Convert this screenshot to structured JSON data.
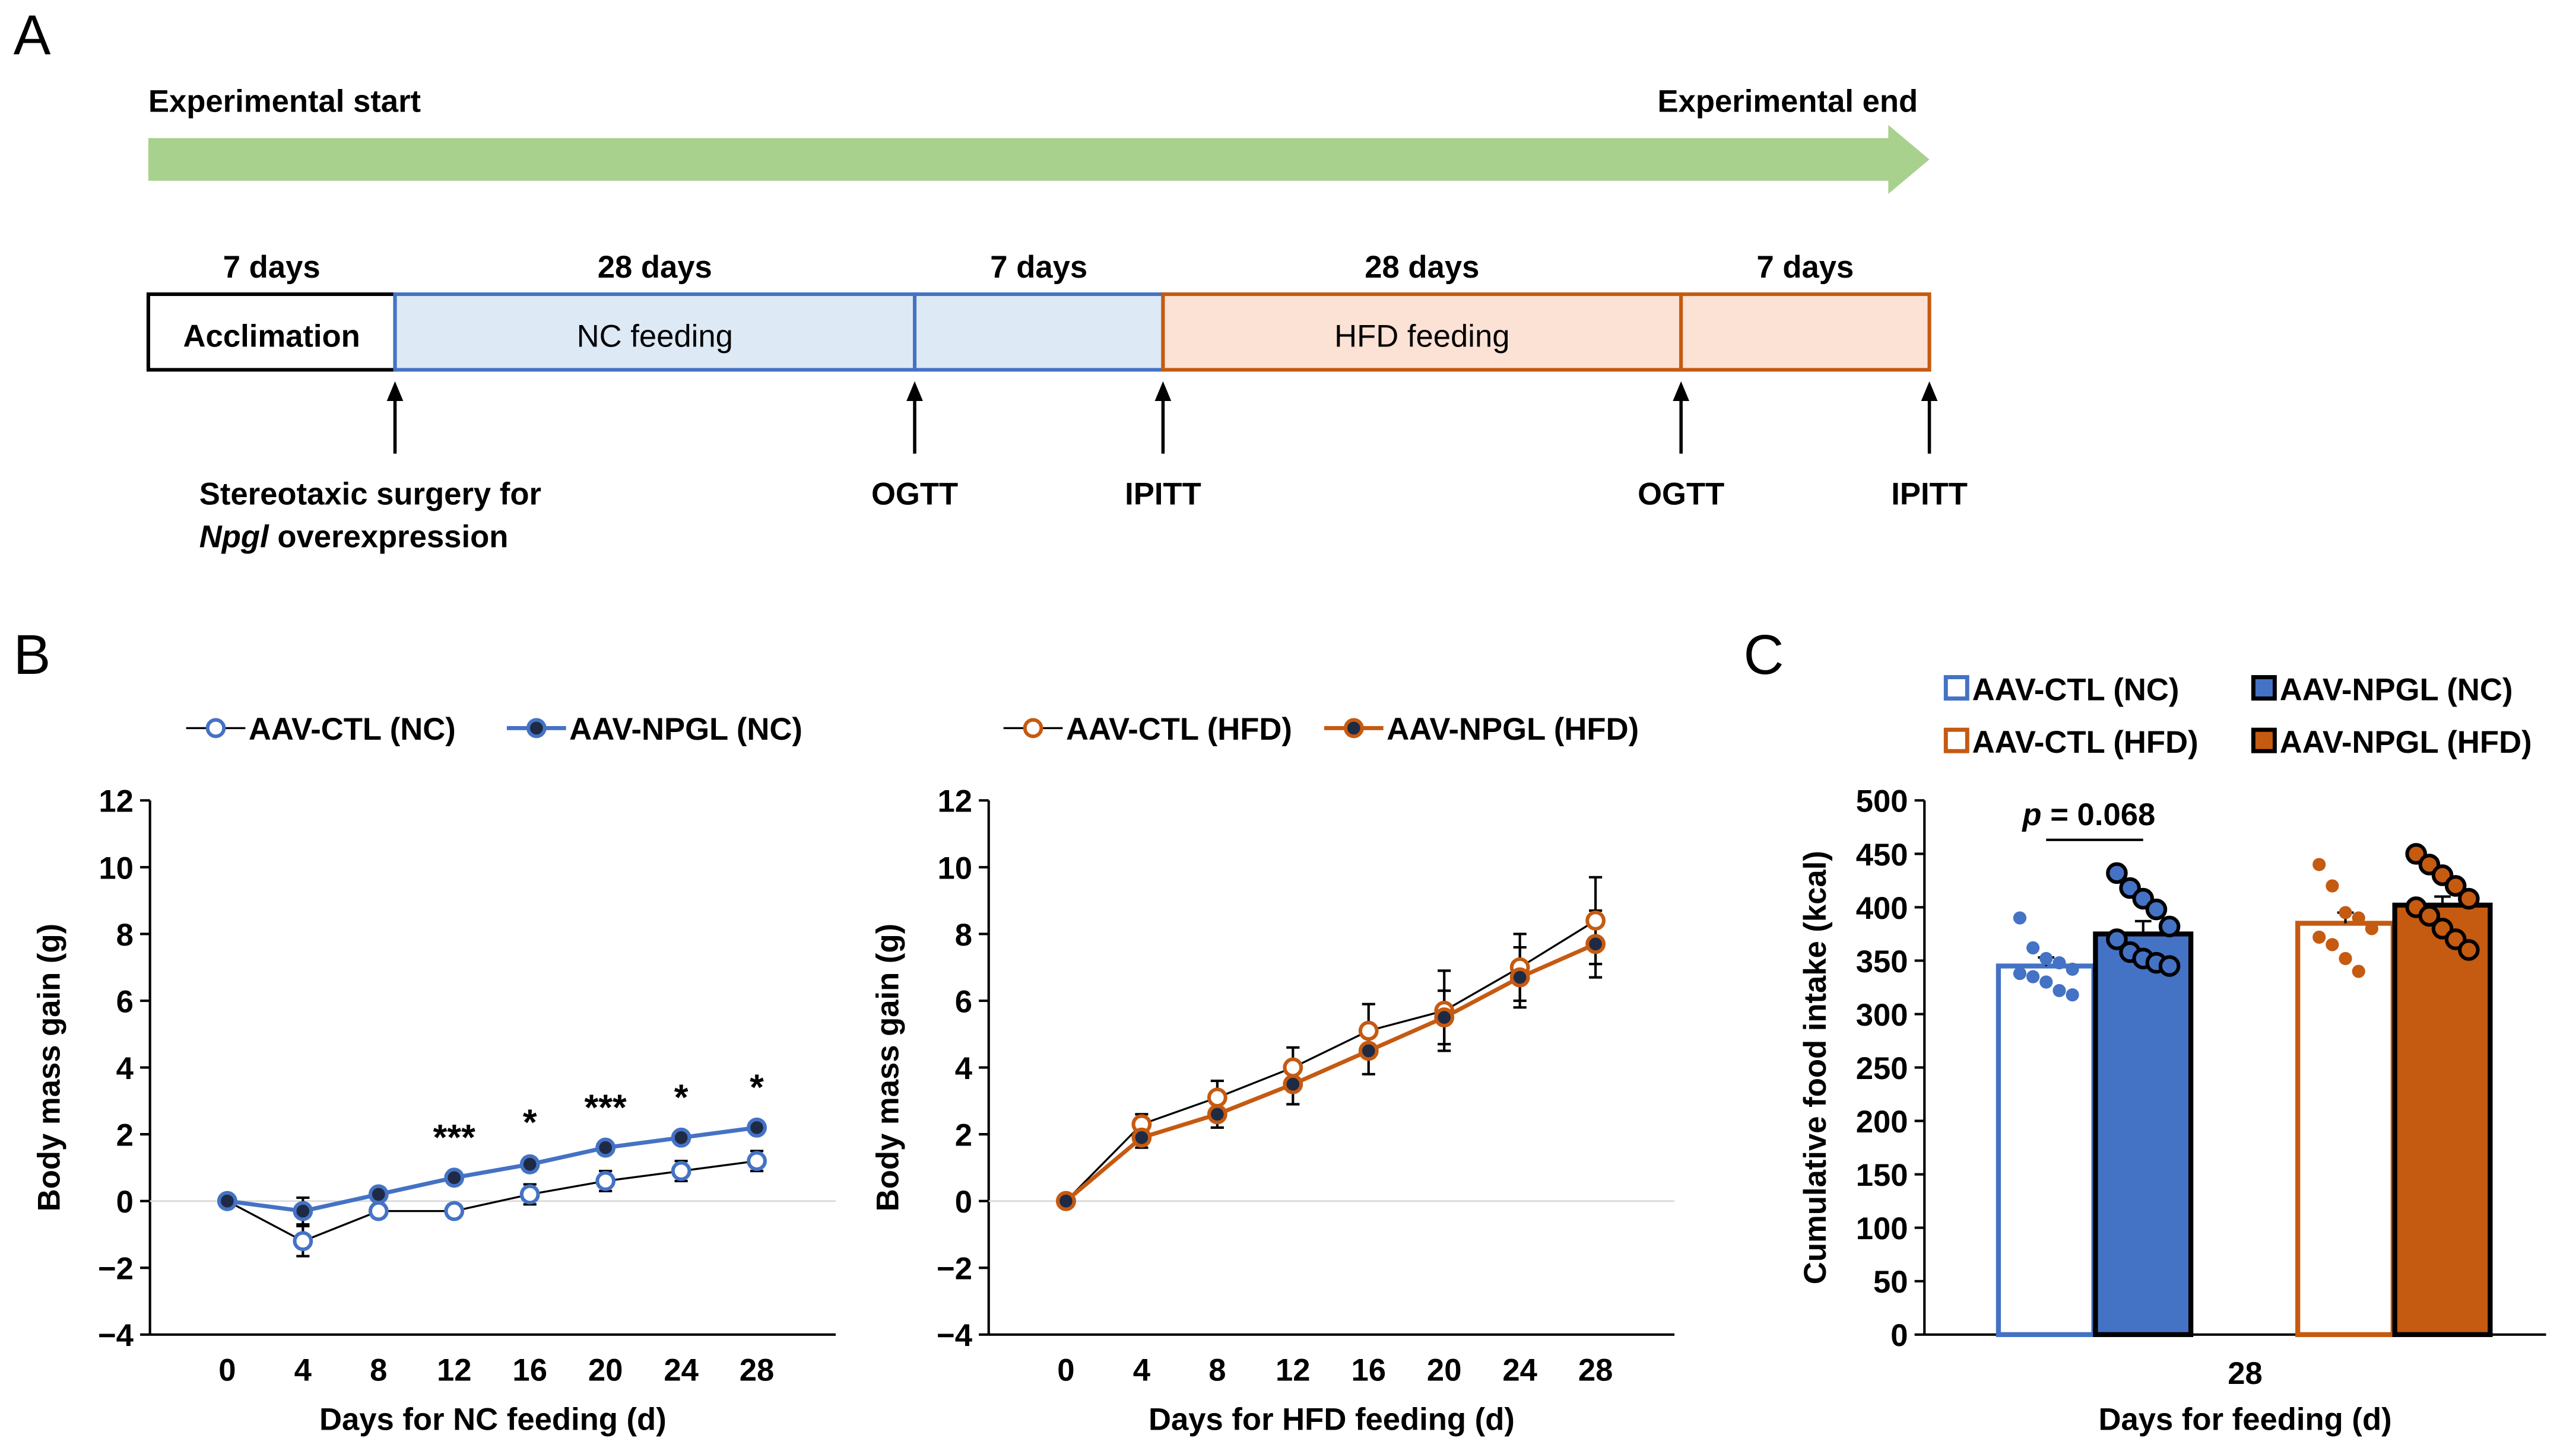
{
  "panelA": {
    "label": "A",
    "arrow_start": "Experimental start",
    "arrow_end": "Experimental end",
    "arrow_color": "#a9d18e",
    "segments": [
      {
        "duration": "7 days",
        "name": "Acclimation",
        "fill": "#ffffff",
        "stroke": "#000000"
      },
      {
        "duration": "28 days",
        "name": "NC feeding",
        "fill": "#dde9f5",
        "stroke": "#4472c4"
      },
      {
        "duration": "7 days",
        "name": "",
        "fill": "#dde9f5",
        "stroke": "#4472c4"
      },
      {
        "duration": "28 days",
        "name": "HFD feeding",
        "fill": "#fbe2d5",
        "stroke": "#c55a11"
      },
      {
        "duration": "7 days",
        "name": "",
        "fill": "#fbe2d5",
        "stroke": "#c55a11"
      }
    ],
    "events": [
      {
        "label1": "Stereotaxic surgery for",
        "label2_italic": "Npgl",
        "label2_rest": " overexpression"
      },
      {
        "label1": "OGTT"
      },
      {
        "label1": "IPITT"
      },
      {
        "label1": "OGTT"
      },
      {
        "label1": "IPITT"
      }
    ]
  },
  "chart_data": [
    {
      "panel": "B",
      "type": "line",
      "xlabel": "Days for NC feeding (d)",
      "ylabel": "Body mass gain (g)",
      "x": [
        0,
        4,
        8,
        12,
        16,
        20,
        24,
        28
      ],
      "ylim": [
        -4,
        12
      ],
      "yticks": [
        "12",
        "10",
        "8",
        "6",
        "4",
        "2",
        "0",
        "−2",
        "−4"
      ],
      "ytick_values": [
        12,
        10,
        8,
        6,
        4,
        2,
        0,
        -2,
        -4
      ],
      "series": [
        {
          "name": "AAV-CTL (NC)",
          "values": [
            0.0,
            -1.2,
            -0.3,
            -0.3,
            0.2,
            0.6,
            0.9,
            1.2
          ],
          "errors": [
            0.1,
            0.45,
            0.2,
            0.2,
            0.3,
            0.3,
            0.3,
            0.3
          ],
          "color": "#4472c4",
          "marker": "open"
        },
        {
          "name": "AAV-NPGL (NC)",
          "values": [
            0.0,
            -0.3,
            0.2,
            0.7,
            1.1,
            1.6,
            1.9,
            2.2
          ],
          "errors": [
            0.1,
            0.4,
            0.15,
            0.15,
            0.2,
            0.15,
            0.15,
            0.15
          ],
          "color": "#4472c4",
          "marker": "filled"
        }
      ],
      "significance": [
        {
          "x": 12,
          "text": "***"
        },
        {
          "x": 16,
          "text": "*"
        },
        {
          "x": 20,
          "text": "***"
        },
        {
          "x": 24,
          "text": "*"
        },
        {
          "x": 28,
          "text": "*"
        }
      ]
    },
    {
      "panel": "B2",
      "type": "line",
      "xlabel": "Days for HFD feeding (d)",
      "ylabel": "Body mass gain (g)",
      "x": [
        0,
        4,
        8,
        12,
        16,
        20,
        24,
        28
      ],
      "ylim": [
        -4,
        12
      ],
      "yticks": [
        "12",
        "10",
        "8",
        "6",
        "4",
        "2",
        "0",
        "−2",
        "−4"
      ],
      "ytick_values": [
        12,
        10,
        8,
        6,
        4,
        2,
        0,
        -2,
        -4
      ],
      "series": [
        {
          "name": "AAV-CTL (HFD)",
          "values": [
            0.0,
            2.3,
            3.1,
            4.0,
            5.1,
            5.7,
            7.0,
            8.4
          ],
          "errors": [
            0.1,
            0.3,
            0.5,
            0.6,
            0.8,
            1.2,
            1.0,
            1.3
          ],
          "color": "#c55a11",
          "marker": "open"
        },
        {
          "name": "AAV-NPGL (HFD)",
          "values": [
            0.0,
            1.9,
            2.6,
            3.5,
            4.5,
            5.5,
            6.7,
            7.7
          ],
          "errors": [
            0.1,
            0.3,
            0.4,
            0.6,
            0.7,
            0.8,
            0.9,
            1.0
          ],
          "color": "#c55a11",
          "marker": "filled"
        }
      ]
    },
    {
      "panel": "C",
      "type": "bar",
      "xlabel": "Days for feeding (d)",
      "ylabel": "Cumulative food intake (kcal)",
      "categories": [
        "28"
      ],
      "ylim": [
        0,
        500
      ],
      "yticks": [
        "500",
        "450",
        "400",
        "350",
        "300",
        "250",
        "200",
        "150",
        "100",
        "50",
        "0"
      ],
      "ytick_values": [
        500,
        450,
        400,
        350,
        300,
        250,
        200,
        150,
        100,
        50,
        0
      ],
      "series": [
        {
          "name": "AAV-CTL (NC)",
          "value": 345,
          "error": 8,
          "color": "#4472c4",
          "fill": "#ffffff",
          "points": [
            390,
            362,
            352,
            348,
            342,
            338,
            335,
            330,
            322,
            318
          ]
        },
        {
          "name": "AAV-NPGL (NC)",
          "value": 375,
          "error": 12,
          "color": "#000000",
          "fill": "#4472c4",
          "points": [
            432,
            418,
            408,
            398,
            382,
            370,
            358,
            352,
            348,
            345
          ]
        },
        {
          "name": "AAV-CTL (HFD)",
          "value": 385,
          "error": 10,
          "color": "#c55a11",
          "fill": "#ffffff",
          "points": [
            440,
            420,
            395,
            390,
            380,
            372,
            365,
            352,
            340
          ]
        },
        {
          "name": "AAV-NPGL (HFD)",
          "value": 402,
          "error": 8,
          "color": "#000000",
          "fill": "#c55a11",
          "points": [
            450,
            440,
            430,
            420,
            408,
            400,
            392,
            380,
            370,
            360
          ]
        }
      ],
      "annotation": {
        "p_label": "p",
        "p_rest": " = 0.068"
      }
    }
  ],
  "labels": {
    "B": "B",
    "C": "C"
  }
}
